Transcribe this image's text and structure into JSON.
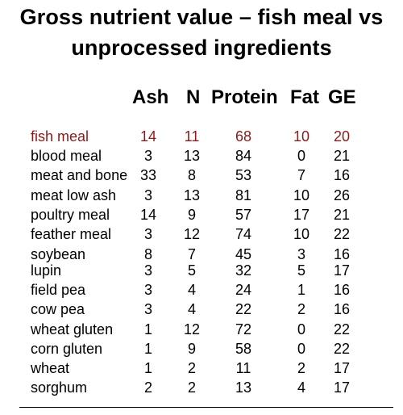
{
  "title": {
    "line1": "Gross nutrient value – fish meal vs",
    "line2": "unprocessed ingredients"
  },
  "columns": [
    "Ash",
    "N",
    "Protein",
    "Fat",
    "GE"
  ],
  "colors": {
    "highlight_row": "#8b1a1a",
    "text": "#000000"
  },
  "rows": [
    {
      "name": "fish meal",
      "ash": "14",
      "n": "11",
      "protein": "68",
      "fat": "10",
      "ge": "20"
    },
    {
      "name": "blood meal",
      "ash": "3",
      "n": "13",
      "protein": "84",
      "fat": "0",
      "ge": "21"
    },
    {
      "name": "meat and bone",
      "ash": "33",
      "n": "8",
      "protein": "53",
      "fat": "7",
      "ge": "16"
    },
    {
      "name": "meat low ash",
      "ash": "3",
      "n": "13",
      "protein": "81",
      "fat": "10",
      "ge": "26"
    },
    {
      "name": "poultry meal",
      "ash": "14",
      "n": "9",
      "protein": "57",
      "fat": "17",
      "ge": "21"
    },
    {
      "name": "feather meal",
      "ash": "3",
      "n": "12",
      "protein": "74",
      "fat": "10",
      "ge": "22"
    },
    {
      "name": "soybean",
      "ash": "8",
      "n": "7",
      "protein": "45",
      "fat": "3",
      "ge": "16"
    },
    {
      "name": "lupin",
      "ash": "3",
      "n": "5",
      "protein": "32",
      "fat": "5",
      "ge": "17"
    },
    {
      "name": "field pea",
      "ash": "3",
      "n": "4",
      "protein": "24",
      "fat": "1",
      "ge": "16"
    },
    {
      "name": "cow pea",
      "ash": "3",
      "n": "4",
      "protein": "22",
      "fat": "2",
      "ge": "16"
    },
    {
      "name": "wheat gluten",
      "ash": "1",
      "n": "12",
      "protein": "72",
      "fat": "0",
      "ge": "22"
    },
    {
      "name": "corn gluten",
      "ash": "1",
      "n": "9",
      "protein": "58",
      "fat": "0",
      "ge": "22"
    },
    {
      "name": "wheat",
      "ash": "1",
      "n": "2",
      "protein": "11",
      "fat": "2",
      "ge": "17"
    },
    {
      "name": "sorghum",
      "ash": "2",
      "n": "2",
      "protein": "13",
      "fat": "4",
      "ge": "17"
    }
  ]
}
